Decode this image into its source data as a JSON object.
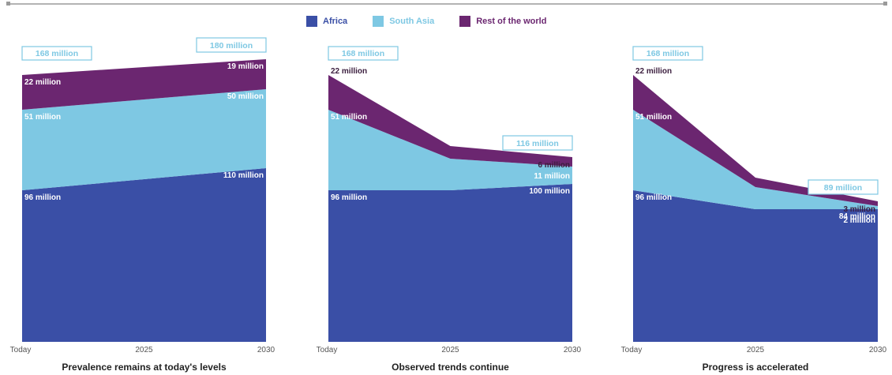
{
  "legend": {
    "items": [
      {
        "label": "Africa",
        "color": "#3a4fa6"
      },
      {
        "label": "South Asia",
        "color": "#7ec8e3"
      },
      {
        "label": "Rest of the world",
        "color": "#6b2670"
      }
    ]
  },
  "colors": {
    "africa": "#3a4fa6",
    "south_asia": "#7ec8e3",
    "rest": "#6b2670",
    "callout": "#7ec8e3",
    "axis_text": "#555555"
  },
  "chart_data": [
    {
      "type": "area",
      "title": "Prevalence remains at today's levels",
      "x": [
        "Today",
        "2025",
        "2030"
      ],
      "x_numeric": [
        0,
        0.5,
        1
      ],
      "series": [
        {
          "name": "Africa",
          "values": [
            96,
            103,
            110
          ]
        },
        {
          "name": "South Asia",
          "values": [
            51,
            50.5,
            50
          ]
        },
        {
          "name": "Rest of the world",
          "values": [
            22,
            20.5,
            19
          ]
        }
      ],
      "ylim": [
        0,
        200
      ],
      "start_label": "168 million",
      "end_label": "180 million",
      "segment_labels_start": [
        "96 million",
        "51 million",
        "22 million"
      ],
      "segment_labels_end": [
        "110 million",
        "50 million",
        "19 million"
      ]
    },
    {
      "type": "area",
      "title": "Observed trends continue",
      "x": [
        "Today",
        "2025",
        "2030"
      ],
      "x_numeric": [
        0,
        0.5,
        1
      ],
      "series": [
        {
          "name": "Africa",
          "values": [
            96,
            96,
            100
          ]
        },
        {
          "name": "South Asia",
          "values": [
            51,
            20,
            11
          ]
        },
        {
          "name": "Rest of the world",
          "values": [
            22,
            8,
            6
          ]
        }
      ],
      "ylim": [
        0,
        200
      ],
      "start_label": "168 million",
      "end_label": "116 million",
      "segment_labels_start": [
        "96 million",
        "51 million",
        "22 million"
      ],
      "segment_labels_end": [
        "100 million",
        "11 million",
        "6 million"
      ]
    },
    {
      "type": "area",
      "title": "Progress is accelerated",
      "x": [
        "Today",
        "2025",
        "2030"
      ],
      "x_numeric": [
        0,
        0.5,
        1
      ],
      "series": [
        {
          "name": "Africa",
          "values": [
            96,
            84,
            84
          ]
        },
        {
          "name": "South Asia",
          "values": [
            51,
            14,
            2
          ]
        },
        {
          "name": "Rest of the world",
          "values": [
            22,
            6,
            3
          ]
        }
      ],
      "ylim": [
        0,
        200
      ],
      "start_label": "168 million",
      "end_label": "89 million",
      "segment_labels_start": [
        "96 million",
        "51 million",
        "22 million"
      ],
      "segment_labels_end": [
        "84 million",
        "2 million",
        "3 million"
      ]
    }
  ]
}
